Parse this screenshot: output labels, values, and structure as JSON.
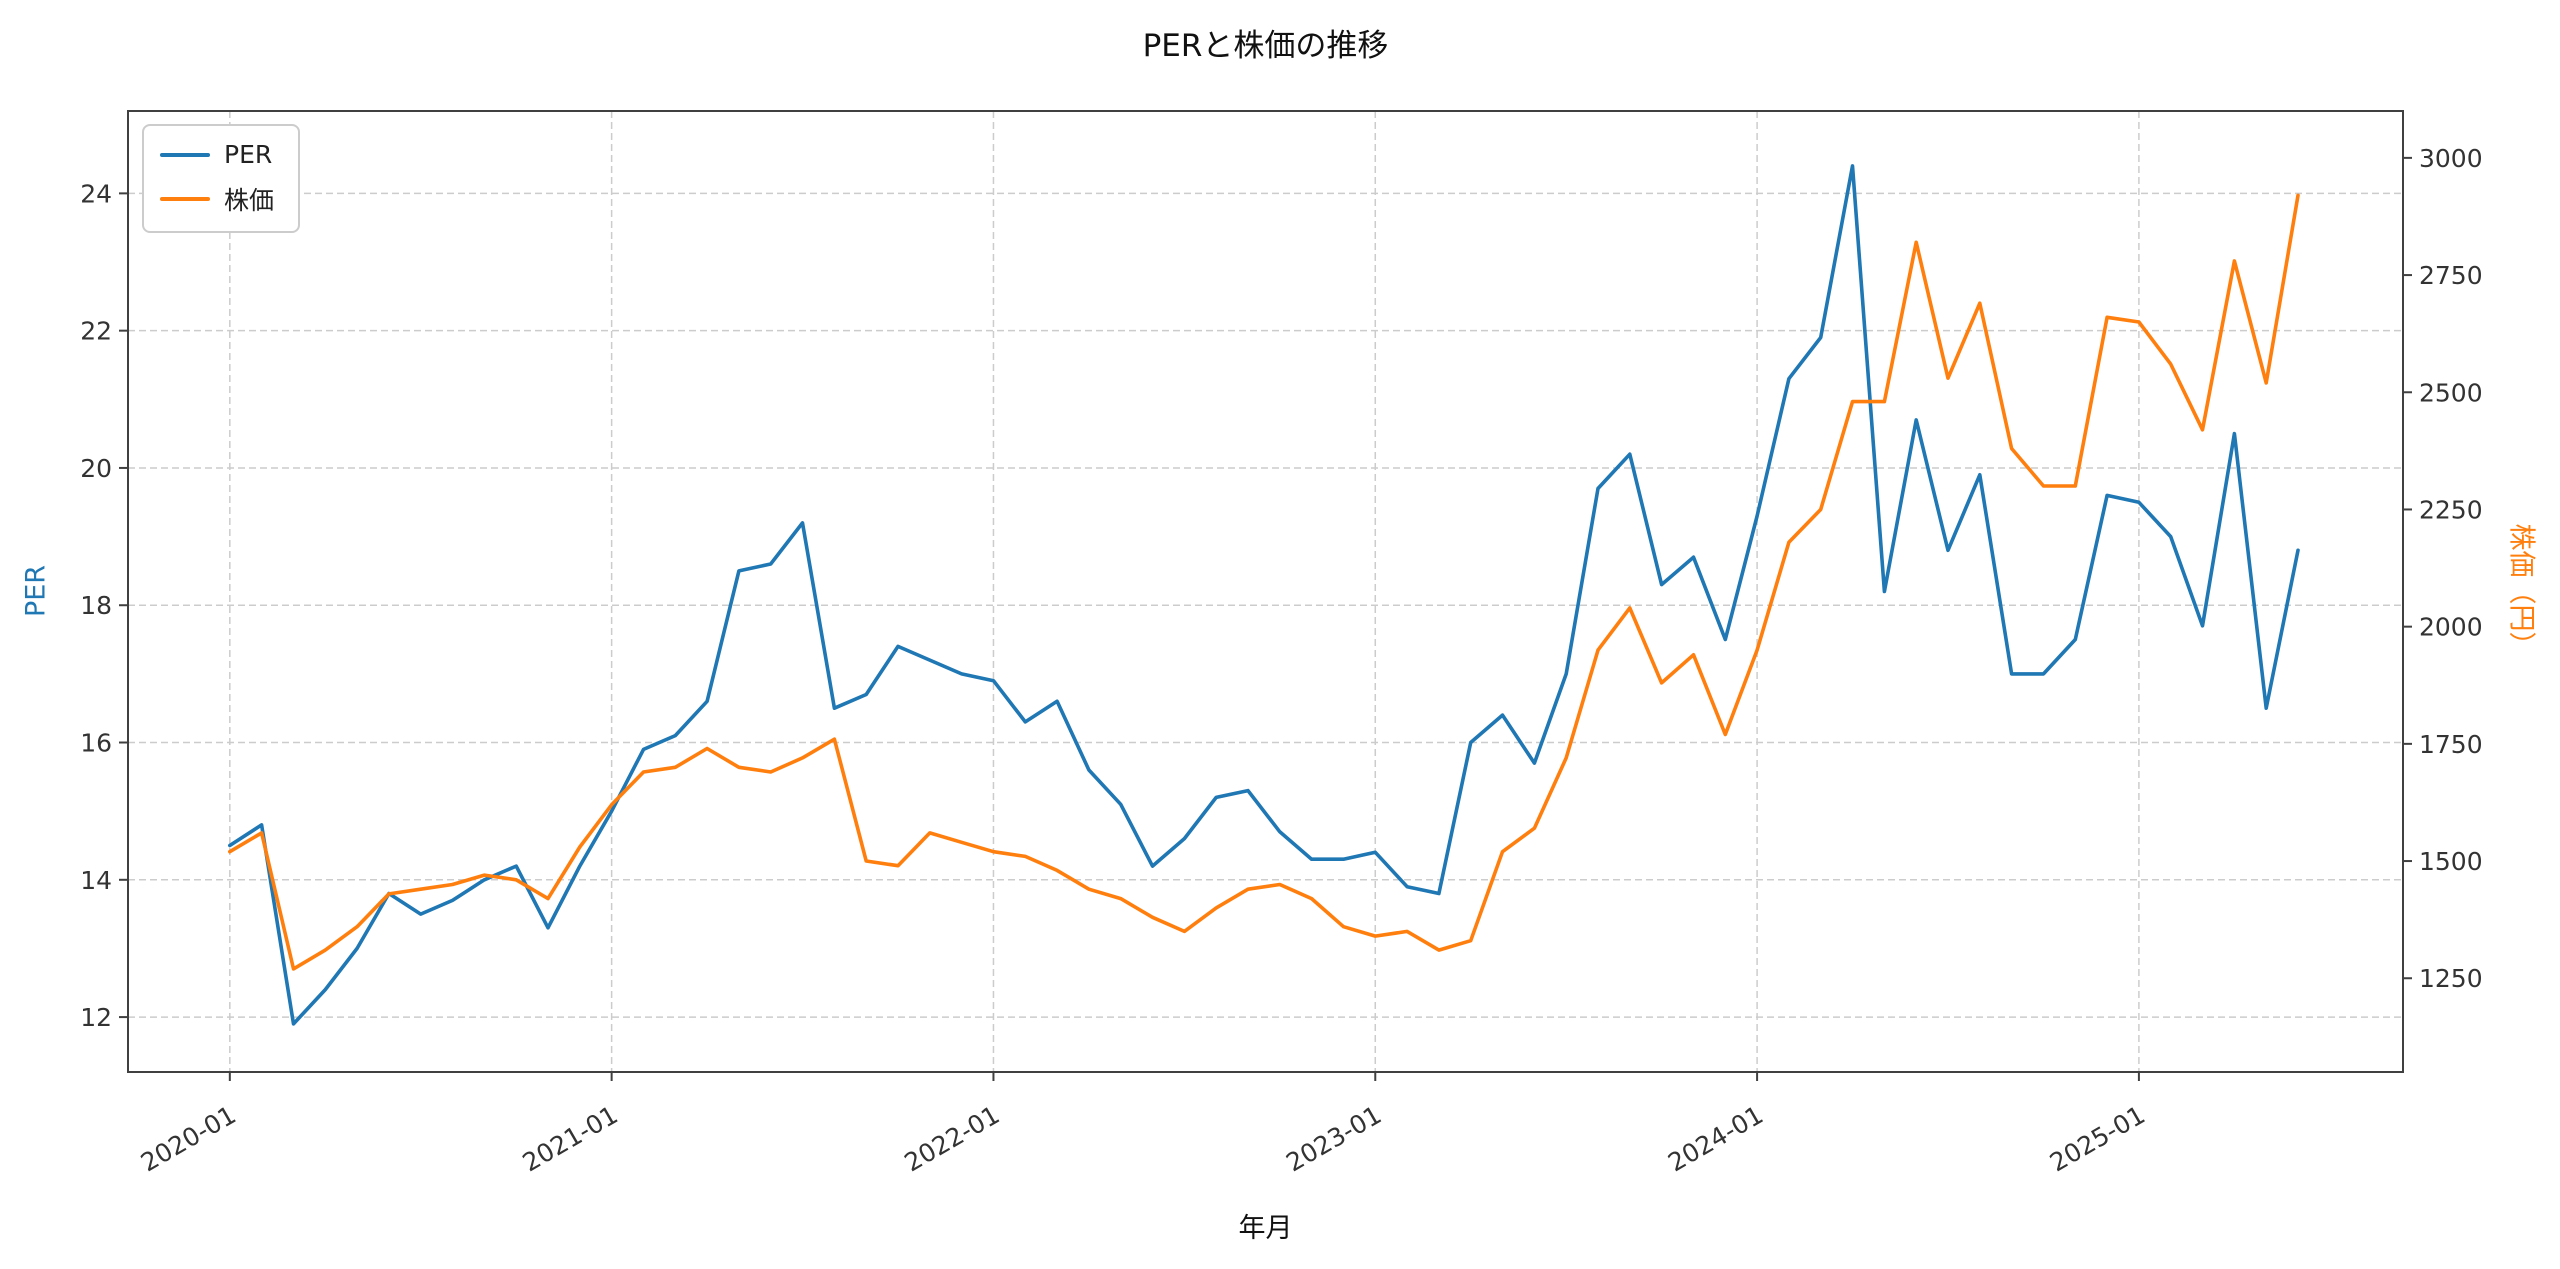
{
  "chart_data": {
    "type": "line",
    "title": "PERと株価の推移",
    "xlabel": "年月",
    "ylabel_left": "PER",
    "ylabel_right": "株価（円）",
    "grid": "dashed",
    "legend_position": "upper-left",
    "categories": [
      "2020-01",
      "2020-02",
      "2020-03",
      "2020-04",
      "2020-05",
      "2020-06",
      "2020-07",
      "2020-08",
      "2020-09",
      "2020-10",
      "2020-11",
      "2020-12",
      "2021-01",
      "2021-02",
      "2021-03",
      "2021-04",
      "2021-05",
      "2021-06",
      "2021-07",
      "2021-08",
      "2021-09",
      "2021-10",
      "2021-11",
      "2021-12",
      "2022-01",
      "2022-02",
      "2022-03",
      "2022-04",
      "2022-05",
      "2022-06",
      "2022-07",
      "2022-08",
      "2022-09",
      "2022-10",
      "2022-11",
      "2022-12",
      "2023-01",
      "2023-02",
      "2023-03",
      "2023-04",
      "2023-05",
      "2023-06",
      "2023-07",
      "2023-08",
      "2023-09",
      "2023-10",
      "2023-11",
      "2023-12",
      "2024-01",
      "2024-02",
      "2024-03",
      "2024-04",
      "2024-05",
      "2024-06",
      "2024-07",
      "2024-08",
      "2024-09",
      "2024-10",
      "2024-11",
      "2024-12",
      "2025-01",
      "2025-02",
      "2025-03",
      "2025-04",
      "2025-05",
      "2025-06"
    ],
    "series": [
      {
        "name": "PER",
        "key": "per",
        "axis": "left",
        "color": "#1f77b4",
        "values": [
          14.5,
          14.8,
          11.9,
          12.4,
          13.0,
          13.8,
          13.5,
          13.7,
          14.0,
          14.2,
          13.3,
          14.2,
          15.0,
          15.9,
          16.1,
          16.6,
          18.5,
          18.6,
          19.2,
          16.5,
          16.7,
          17.4,
          17.2,
          17.0,
          16.9,
          16.3,
          16.6,
          15.6,
          15.1,
          14.2,
          14.6,
          15.2,
          15.3,
          14.7,
          14.3,
          14.3,
          14.4,
          13.9,
          13.8,
          16.0,
          16.4,
          15.7,
          17.0,
          19.7,
          20.2,
          18.3,
          18.7,
          17.5,
          19.3,
          21.3,
          21.9,
          24.4,
          18.2,
          20.7,
          18.8,
          19.9,
          17.0,
          17.0,
          17.5,
          19.6,
          19.5,
          19.0,
          17.7,
          20.5,
          16.5,
          18.8
        ]
      },
      {
        "name": "株価",
        "key": "stock-price",
        "axis": "right",
        "color": "#ff7f0e",
        "values": [
          1520,
          1560,
          1270,
          1310,
          1360,
          1430,
          1440,
          1450,
          1470,
          1460,
          1420,
          1530,
          1620,
          1690,
          1700,
          1740,
          1700,
          1690,
          1720,
          1760,
          1500,
          1490,
          1560,
          1540,
          1520,
          1510,
          1480,
          1440,
          1420,
          1380,
          1350,
          1400,
          1440,
          1450,
          1420,
          1360,
          1340,
          1350,
          1310,
          1330,
          1520,
          1570,
          1720,
          1950,
          2040,
          1880,
          1940,
          1770,
          1950,
          2180,
          2250,
          2480,
          2480,
          2820,
          2530,
          2690,
          2380,
          2300,
          2300,
          2660,
          2650,
          2560,
          2420,
          2780,
          2520,
          2920
        ]
      }
    ],
    "x_axis": {
      "tick_labels": [
        "2020-01",
        "2021-01",
        "2022-01",
        "2023-01",
        "2024-01",
        "2025-01"
      ],
      "tick_positions": [
        0,
        12,
        24,
        36,
        48,
        60
      ],
      "range": [
        -3.2,
        68.3
      ],
      "label_rotation_deg": -30
    },
    "left_axis": {
      "label": "PER",
      "ticks": [
        12,
        14,
        16,
        18,
        20,
        22,
        24
      ],
      "range": [
        11.2,
        25.2
      ],
      "color": "#1f77b4"
    },
    "right_axis": {
      "label": "株価（円）",
      "ticks": [
        1250,
        1500,
        1750,
        2000,
        2250,
        2500,
        2750,
        3000
      ],
      "range": [
        1050,
        3100
      ],
      "color": "#ff7f0e"
    },
    "legend": {
      "items": [
        {
          "label": "PER",
          "color": "#1f77b4"
        },
        {
          "label": "株価",
          "color": "#ff7f0e"
        }
      ]
    }
  }
}
